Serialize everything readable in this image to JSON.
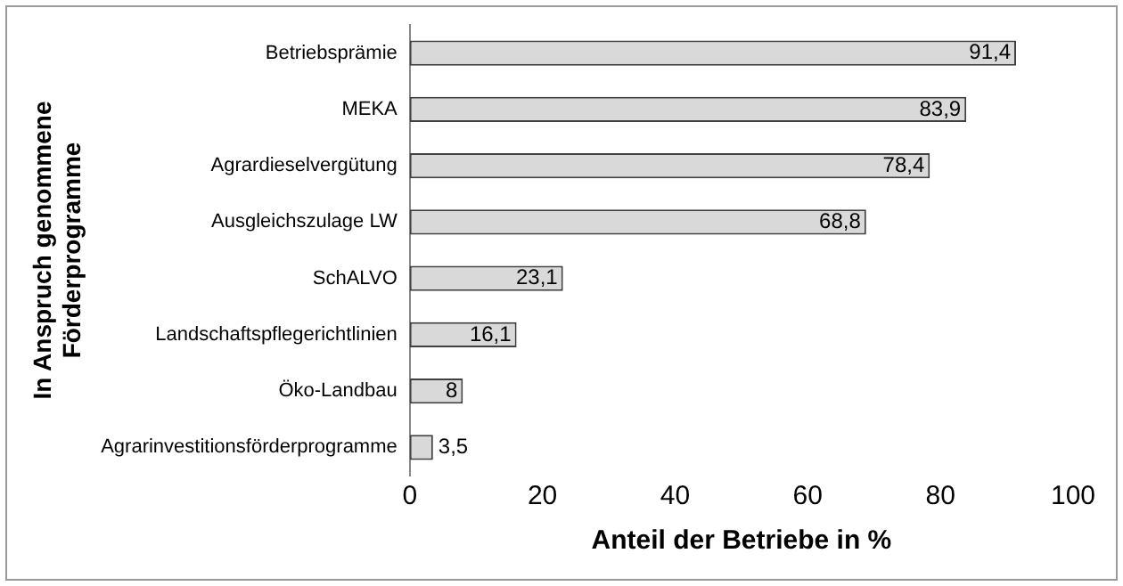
{
  "chart_data": {
    "type": "bar",
    "orientation": "horizontal",
    "xlabel": "Anteil der Betriebe in %",
    "ylabel": "In Anspruch genommene Förderprogramme",
    "categories": [
      "Betriebsprämie",
      "MEKA",
      "Agrardieselvergütung",
      "Ausgleichszulage LW",
      "SchALVO",
      "Landschaftspflegerichtlinien",
      "Öko-Landbau",
      "Agrarinvestitionsförderprogramme"
    ],
    "values": [
      91.4,
      83.9,
      78.4,
      68.8,
      23.1,
      16.1,
      8,
      3.5
    ],
    "value_labels": [
      "91,4",
      "83,9",
      "78,4",
      "68,8",
      "23,1",
      "16,1",
      "8",
      "3,5"
    ],
    "color": "#d9d9d9",
    "xlim": [
      0,
      100
    ],
    "xticks": [
      0,
      20,
      40,
      60,
      80,
      100
    ],
    "grid": false,
    "legend": false
  }
}
